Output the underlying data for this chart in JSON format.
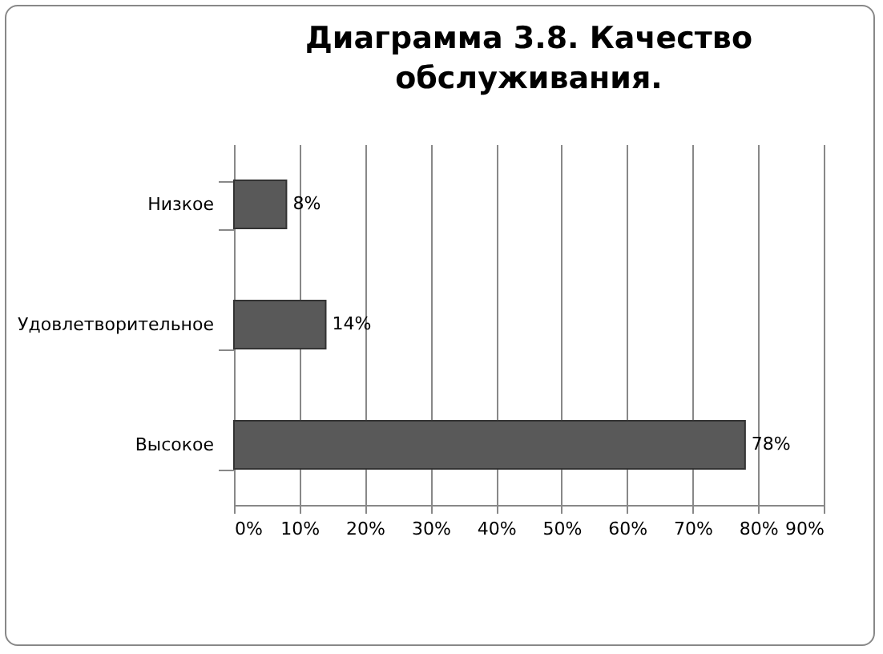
{
  "chart_data": {
    "type": "bar",
    "orientation": "horizontal",
    "title": "Диаграмма 3.8. Качество обслуживания.",
    "categories": [
      "Низкое",
      "Удовлетворительное",
      "Высокое"
    ],
    "values": [
      8,
      14,
      78
    ],
    "value_labels": [
      "8%",
      "14%",
      "78%"
    ],
    "color": "#595959",
    "xlim": [
      0,
      90
    ],
    "xticks": [
      {
        "value": 0,
        "label": "0%"
      },
      {
        "value": 10,
        "label": "10%"
      },
      {
        "value": 20,
        "label": "20%"
      },
      {
        "value": 30,
        "label": "30%"
      },
      {
        "value": 40,
        "label": "40%"
      },
      {
        "value": 50,
        "label": "50%"
      },
      {
        "value": 60,
        "label": "60%"
      },
      {
        "value": 70,
        "label": "70%"
      },
      {
        "value": 80,
        "label": "80%"
      },
      {
        "value": 90,
        "label": "90%"
      }
    ],
    "grid": "x"
  }
}
